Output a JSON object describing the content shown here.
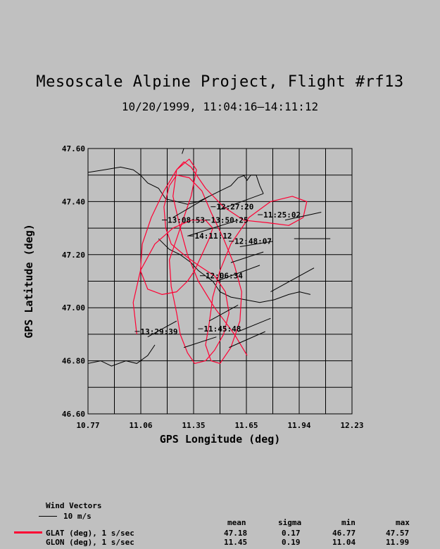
{
  "title": "Mesoscale Alpine Project, Flight #rf13",
  "subtitle": "10/20/1999, 11:04:16–14:11:12",
  "chart_data": {
    "type": "line",
    "xlabel": "GPS Longitude (deg)",
    "ylabel": "GPS Latitude (deg)",
    "xlim": [
      10.77,
      12.23
    ],
    "ylim": [
      46.6,
      47.6
    ],
    "x_tick_labels": [
      "10.77",
      "11.06",
      "11.35",
      "11.65",
      "11.94",
      "12.23"
    ],
    "y_tick_labels": [
      "46.60",
      "46.80",
      "47.00",
      "47.20",
      "47.40",
      "47.60"
    ],
    "grid": true,
    "track_color": "#ff0033",
    "series": [
      {
        "name": "GLAT (deg), 1 s/sec",
        "x": [
          11.65,
          11.58,
          11.47,
          11.38,
          11.32,
          11.28,
          11.24,
          11.26,
          11.3,
          11.34,
          11.42,
          11.52,
          11.63,
          11.77,
          11.88,
          11.96,
          11.98,
          11.9,
          11.78,
          11.66,
          11.56,
          11.5,
          11.46,
          11.44,
          11.42,
          11.45,
          11.5,
          11.56,
          11.61,
          11.62,
          11.58,
          11.52,
          11.45,
          11.4,
          11.33,
          11.26,
          11.22,
          11.19,
          11.2,
          11.23,
          11.3,
          11.38,
          11.47,
          11.53,
          11.55,
          11.52,
          11.47,
          11.42,
          11.36,
          11.32,
          11.28,
          11.26,
          11.23,
          11.22,
          11.26,
          11.3,
          11.34,
          11.37,
          11.33,
          11.26,
          11.19,
          11.12,
          11.07,
          11.06,
          11.1,
          11.18,
          11.26,
          11.32,
          11.36,
          11.4,
          11.44,
          11.46,
          11.42,
          11.34,
          11.24,
          11.14,
          11.06,
          11.02,
          11.04
        ],
        "y": [
          46.82,
          46.9,
          47.0,
          47.1,
          47.2,
          47.3,
          47.42,
          47.52,
          47.55,
          47.53,
          47.45,
          47.38,
          47.33,
          47.32,
          47.31,
          47.34,
          47.4,
          47.42,
          47.4,
          47.34,
          47.24,
          47.14,
          47.04,
          46.94,
          46.86,
          46.8,
          46.79,
          46.85,
          46.95,
          47.06,
          47.16,
          47.26,
          47.36,
          47.44,
          47.49,
          47.5,
          47.46,
          47.38,
          47.3,
          47.24,
          47.2,
          47.16,
          47.12,
          47.06,
          46.98,
          46.9,
          46.84,
          46.8,
          46.79,
          46.83,
          46.9,
          46.98,
          47.08,
          47.18,
          47.26,
          47.34,
          47.42,
          47.52,
          47.56,
          47.52,
          47.44,
          47.34,
          47.24,
          47.14,
          47.07,
          47.05,
          47.06,
          47.1,
          47.14,
          47.2,
          47.26,
          47.3,
          47.33,
          47.33,
          47.3,
          47.24,
          47.14,
          47.02,
          46.9
        ],
        "stats": {
          "mean": "47.18",
          "sigma": "0.17",
          "min": "46.77",
          "max": "47.57"
        }
      },
      {
        "name": "GLON (deg), 1 s/sec",
        "stats": {
          "mean": "11.45",
          "sigma": "0.19",
          "min": "11.04",
          "max": "11.99"
        }
      }
    ],
    "time_annotations": [
      {
        "label": "12:27:20",
        "x": 11.48,
        "y": 47.37
      },
      {
        "label": "11:25:02",
        "x": 11.74,
        "y": 47.34
      },
      {
        "label": "13:08:53",
        "x": 11.21,
        "y": 47.32
      },
      {
        "label": "13:50:25",
        "x": 11.45,
        "y": 47.32
      },
      {
        "label": "14:11:12",
        "x": 11.36,
        "y": 47.26
      },
      {
        "label": "12:48:07",
        "x": 11.58,
        "y": 47.24
      },
      {
        "label": "12:06:34",
        "x": 11.42,
        "y": 47.11
      },
      {
        "label": "11:45:48",
        "x": 11.41,
        "y": 46.91
      },
      {
        "label": "13:29:39",
        "x": 11.06,
        "y": 46.9
      }
    ],
    "wind_vectors": [
      {
        "x": 11.5,
        "y": 47.37,
        "dx": 0.24,
        "dy": 0.06
      },
      {
        "x": 11.86,
        "y": 47.33,
        "dx": 0.2,
        "dy": 0.03
      },
      {
        "x": 11.91,
        "y": 47.26,
        "dx": 0.2,
        "dy": 0.0
      },
      {
        "x": 11.24,
        "y": 47.34,
        "dx": 0.2,
        "dy": 0.08
      },
      {
        "x": 11.32,
        "y": 47.27,
        "dx": 0.28,
        "dy": 0.06
      },
      {
        "x": 11.61,
        "y": 47.23,
        "dx": 0.18,
        "dy": 0.02
      },
      {
        "x": 11.56,
        "y": 47.17,
        "dx": 0.18,
        "dy": 0.04
      },
      {
        "x": 11.48,
        "y": 47.1,
        "dx": 0.24,
        "dy": 0.06
      },
      {
        "x": 11.78,
        "y": 47.06,
        "dx": 0.24,
        "dy": 0.09
      },
      {
        "x": 11.44,
        "y": 46.95,
        "dx": 0.16,
        "dy": 0.06
      },
      {
        "x": 11.6,
        "y": 46.91,
        "dx": 0.18,
        "dy": 0.05
      },
      {
        "x": 11.1,
        "y": 46.89,
        "dx": 0.16,
        "dy": 0.06
      },
      {
        "x": 11.3,
        "y": 46.85,
        "dx": 0.18,
        "dy": 0.04
      },
      {
        "x": 11.55,
        "y": 46.85,
        "dx": 0.2,
        "dy": 0.06
      }
    ],
    "coastline": [
      [
        [
          10.77,
          47.51
        ],
        [
          10.86,
          47.52
        ],
        [
          10.95,
          47.53
        ],
        [
          11.02,
          47.52
        ],
        [
          11.06,
          47.5
        ],
        [
          11.1,
          47.47
        ],
        [
          11.16,
          47.45
        ],
        [
          11.2,
          47.41
        ],
        [
          11.26,
          47.4
        ],
        [
          11.32,
          47.39
        ],
        [
          11.38,
          47.4
        ],
        [
          11.44,
          47.42
        ],
        [
          11.5,
          47.44
        ],
        [
          11.56,
          47.46
        ],
        [
          11.6,
          47.49
        ],
        [
          11.64,
          47.5
        ]
      ],
      [
        [
          11.63,
          47.5
        ],
        [
          11.65,
          47.48
        ],
        [
          11.67,
          47.5
        ],
        [
          11.7,
          47.5
        ],
        [
          11.72,
          47.46
        ],
        [
          11.74,
          47.43
        ]
      ],
      [
        [
          11.16,
          47.26
        ],
        [
          11.22,
          47.22
        ],
        [
          11.28,
          47.2
        ],
        [
          11.34,
          47.17
        ],
        [
          11.38,
          47.14
        ],
        [
          11.42,
          47.12
        ],
        [
          11.46,
          47.1
        ],
        [
          11.5,
          47.06
        ],
        [
          11.56,
          47.04
        ],
        [
          11.64,
          47.03
        ],
        [
          11.72,
          47.02
        ],
        [
          11.8,
          47.03
        ],
        [
          11.88,
          47.05
        ],
        [
          11.94,
          47.06
        ],
        [
          12.0,
          47.05
        ]
      ],
      [
        [
          10.77,
          46.79
        ],
        [
          10.84,
          46.8
        ],
        [
          10.9,
          46.78
        ],
        [
          10.98,
          46.8
        ],
        [
          11.04,
          46.79
        ],
        [
          11.1,
          46.82
        ],
        [
          11.14,
          46.86
        ]
      ],
      [
        [
          11.29,
          47.58
        ],
        [
          11.3,
          47.6
        ]
      ]
    ],
    "wind_vector_legend": {
      "title": "Wind Vectors",
      "label": "10 m/s"
    },
    "stats_columns": [
      "mean",
      "sigma",
      "min",
      "max"
    ]
  }
}
